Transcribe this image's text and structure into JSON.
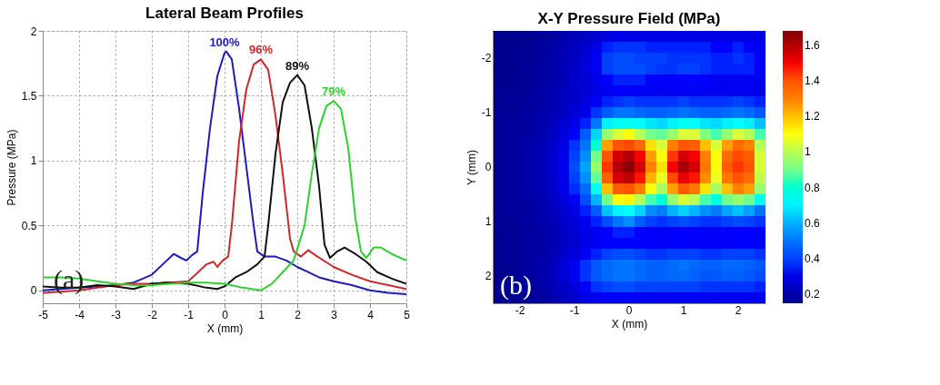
{
  "chart_data": [
    {
      "type": "line",
      "title": "Lateral Beam Profiles",
      "xlabel": "X (mm)",
      "ylabel": "Pressure (MPa)",
      "xlim": [
        -5,
        5
      ],
      "xticks": [
        -5,
        -4,
        -3,
        -2,
        -1,
        0,
        1,
        2,
        3,
        4,
        5
      ],
      "ylim": [
        -0.1,
        2
      ],
      "yticks": [
        0,
        0.5,
        1,
        1.5,
        2
      ],
      "grid": true,
      "line_style": "solid",
      "series": [
        {
          "color": "#1c1cb8",
          "x": [
            -5,
            -4.5,
            -4,
            -3.5,
            -3,
            -2.5,
            -2,
            -1.7,
            -1.4,
            -1.2,
            -1.05,
            -0.9,
            -0.75,
            -0.6,
            -0.4,
            -0.2,
            0,
            0.05,
            0.2,
            0.4,
            0.6,
            0.8,
            0.9,
            1.1,
            1.4,
            1.7,
            2,
            2.3,
            2.6,
            3,
            3.5,
            4,
            4.5,
            5
          ],
          "values": [
            0.0,
            0.01,
            0.02,
            0.03,
            0.04,
            0.06,
            0.12,
            0.2,
            0.28,
            0.25,
            0.23,
            0.27,
            0.3,
            0.75,
            1.25,
            1.65,
            1.83,
            1.84,
            1.78,
            1.4,
            0.95,
            0.5,
            0.3,
            0.26,
            0.26,
            0.23,
            0.18,
            0.14,
            0.1,
            0.07,
            0.04,
            0.0,
            -0.02,
            -0.03
          ]
        },
        {
          "color": "#d02828",
          "x": [
            -5,
            -4.5,
            -4,
            -3.5,
            -3,
            -2.5,
            -2,
            -1.5,
            -1,
            -0.8,
            -0.5,
            -0.3,
            -0.2,
            -0.05,
            0.1,
            0.2,
            0.4,
            0.6,
            0.8,
            1.0,
            1.2,
            1.4,
            1.6,
            1.8,
            1.9,
            2.1,
            2.3,
            2.5,
            3,
            3.5,
            4,
            4.5,
            5
          ],
          "values": [
            -0.02,
            -0.01,
            0.0,
            0.02,
            0.04,
            0.05,
            0.05,
            0.06,
            0.07,
            0.12,
            0.2,
            0.22,
            0.18,
            0.23,
            0.26,
            0.5,
            1.15,
            1.55,
            1.74,
            1.78,
            1.7,
            1.35,
            0.9,
            0.4,
            0.3,
            0.26,
            0.31,
            0.27,
            0.18,
            0.12,
            0.07,
            0.04,
            0.01
          ]
        },
        {
          "color": "#111111",
          "x": [
            -5,
            -4.5,
            -4,
            -3.5,
            -3,
            -2.5,
            -2,
            -1.6,
            -1,
            -0.5,
            -0.2,
            0,
            0.3,
            0.6,
            0.9,
            1.1,
            1.2,
            1.4,
            1.6,
            1.8,
            2.0,
            2.2,
            2.4,
            2.6,
            2.75,
            2.9,
            3.1,
            3.3,
            3.6,
            3.9,
            4.2,
            4.6,
            5
          ],
          "values": [
            0.03,
            0.02,
            0.02,
            0.04,
            0.03,
            0.01,
            0.05,
            0.06,
            0.05,
            0.02,
            0.01,
            0.03,
            0.1,
            0.14,
            0.2,
            0.26,
            0.5,
            1.05,
            1.45,
            1.6,
            1.66,
            1.58,
            1.25,
            0.8,
            0.35,
            0.25,
            0.3,
            0.33,
            0.28,
            0.22,
            0.14,
            0.09,
            0.05
          ]
        },
        {
          "color": "#2ed22e",
          "x": [
            -5,
            -4.5,
            -4,
            -3.5,
            -3,
            -2.5,
            -2,
            -1.5,
            -1,
            -0.5,
            0,
            0.5,
            1.0,
            1.3,
            1.6,
            1.9,
            2.2,
            2.4,
            2.6,
            2.8,
            3.0,
            3.2,
            3.4,
            3.6,
            3.75,
            3.9,
            4.1,
            4.3,
            4.6,
            5
          ],
          "values": [
            0.1,
            0.1,
            0.09,
            0.07,
            0.05,
            0.04,
            0.04,
            0.05,
            0.06,
            0.06,
            0.05,
            0.02,
            0.0,
            0.05,
            0.14,
            0.23,
            0.5,
            0.9,
            1.25,
            1.42,
            1.46,
            1.4,
            1.1,
            0.55,
            0.3,
            0.25,
            0.33,
            0.33,
            0.28,
            0.23
          ]
        }
      ],
      "annotations": [
        {
          "text": "100%",
          "x": 0,
          "y": 1.84
        },
        {
          "text": "96%",
          "x": 1,
          "y": 1.78
        },
        {
          "text": "89%",
          "x": 2,
          "y": 1.66
        },
        {
          "text": "79%",
          "x": 3,
          "y": 1.46
        },
        "(a)"
      ]
    },
    {
      "type": "heatmap",
      "title": "X-Y Pressure Field (MPa)",
      "xlabel": "X (mm)",
      "ylabel": "Y (mm)",
      "clim": [
        0.15,
        1.68
      ],
      "cticks": [
        0.2,
        0.4,
        0.6,
        0.8,
        1,
        1.2,
        1.4,
        1.6
      ],
      "categories": [
        null,
        null,
        "-2",
        null,
        null,
        null,
        null,
        "-1",
        null,
        null,
        null,
        null,
        "0",
        null,
        null,
        null,
        null,
        "1",
        null,
        null,
        null,
        null,
        "2",
        null,
        null
      ],
      "y_categories": [
        null,
        null,
        "-2",
        null,
        null,
        null,
        null,
        "-1",
        null,
        null,
        null,
        null,
        "0",
        null,
        null,
        null,
        null,
        "1",
        null,
        null,
        null,
        null,
        "2",
        null,
        null
      ],
      "cells": [
        [
          0.15,
          0.15,
          0.15,
          0.16,
          0.17,
          0.18,
          0.2,
          0.22,
          0.24,
          0.26,
          0.28,
          0.3,
          0.3,
          0.3,
          0.3,
          0.3,
          0.3,
          0.3,
          0.3,
          0.3,
          0.3,
          0.3,
          0.3,
          0.3,
          0.3
        ],
        [
          0.15,
          0.15,
          0.15,
          0.16,
          0.17,
          0.19,
          0.21,
          0.23,
          0.26,
          0.3,
          0.36,
          0.38,
          0.38,
          0.38,
          0.36,
          0.36,
          0.36,
          0.36,
          0.36,
          0.36,
          0.34,
          0.34,
          0.36,
          0.34,
          0.32
        ],
        [
          0.15,
          0.15,
          0.16,
          0.16,
          0.18,
          0.2,
          0.22,
          0.24,
          0.27,
          0.32,
          0.4,
          0.42,
          0.42,
          0.4,
          0.4,
          0.4,
          0.38,
          0.38,
          0.38,
          0.38,
          0.36,
          0.36,
          0.38,
          0.36,
          0.34
        ],
        [
          0.15,
          0.15,
          0.16,
          0.17,
          0.18,
          0.2,
          0.22,
          0.25,
          0.28,
          0.32,
          0.4,
          0.42,
          0.42,
          0.42,
          0.4,
          0.38,
          0.38,
          0.4,
          0.4,
          0.38,
          0.36,
          0.36,
          0.36,
          0.36,
          0.34
        ],
        [
          0.15,
          0.15,
          0.16,
          0.17,
          0.18,
          0.2,
          0.22,
          0.25,
          0.27,
          0.3,
          0.34,
          0.36,
          0.36,
          0.36,
          0.34,
          0.34,
          0.34,
          0.34,
          0.34,
          0.34,
          0.32,
          0.32,
          0.32,
          0.32,
          0.32
        ],
        [
          0.15,
          0.16,
          0.16,
          0.17,
          0.19,
          0.21,
          0.23,
          0.25,
          0.27,
          0.3,
          0.32,
          0.33,
          0.33,
          0.33,
          0.32,
          0.32,
          0.32,
          0.32,
          0.32,
          0.32,
          0.32,
          0.32,
          0.32,
          0.32,
          0.3
        ],
        [
          0.15,
          0.16,
          0.17,
          0.18,
          0.19,
          0.21,
          0.23,
          0.26,
          0.28,
          0.32,
          0.36,
          0.38,
          0.4,
          0.38,
          0.38,
          0.38,
          0.38,
          0.4,
          0.38,
          0.38,
          0.38,
          0.38,
          0.4,
          0.38,
          0.36
        ],
        [
          0.16,
          0.16,
          0.17,
          0.18,
          0.2,
          0.22,
          0.24,
          0.27,
          0.3,
          0.38,
          0.45,
          0.5,
          0.5,
          0.48,
          0.46,
          0.46,
          0.48,
          0.5,
          0.48,
          0.46,
          0.46,
          0.48,
          0.5,
          0.48,
          0.44
        ],
        [
          0.16,
          0.17,
          0.18,
          0.19,
          0.2,
          0.23,
          0.26,
          0.3,
          0.36,
          0.5,
          0.7,
          0.75,
          0.75,
          0.72,
          0.68,
          0.66,
          0.7,
          0.75,
          0.72,
          0.68,
          0.66,
          0.7,
          0.72,
          0.7,
          0.62
        ],
        [
          0.16,
          0.17,
          0.18,
          0.19,
          0.21,
          0.24,
          0.28,
          0.34,
          0.45,
          0.65,
          0.95,
          1.05,
          1.1,
          1.0,
          0.9,
          0.88,
          0.95,
          1.05,
          1.05,
          0.92,
          0.85,
          0.95,
          1.05,
          1.0,
          0.85
        ],
        [
          0.16,
          0.17,
          0.18,
          0.2,
          0.22,
          0.25,
          0.3,
          0.38,
          0.5,
          0.8,
          1.25,
          1.4,
          1.42,
          1.35,
          1.15,
          1.05,
          1.3,
          1.4,
          1.38,
          1.2,
          1.05,
          1.25,
          1.35,
          1.3,
          1.0
        ],
        [
          0.16,
          0.17,
          0.18,
          0.2,
          0.22,
          0.26,
          0.31,
          0.4,
          0.55,
          0.9,
          1.4,
          1.55,
          1.6,
          1.5,
          1.25,
          1.1,
          1.45,
          1.55,
          1.5,
          1.3,
          1.1,
          1.35,
          1.42,
          1.38,
          1.05
        ],
        [
          0.16,
          0.17,
          0.18,
          0.2,
          0.22,
          0.26,
          0.32,
          0.42,
          0.58,
          0.95,
          1.45,
          1.6,
          1.66,
          1.55,
          1.3,
          1.15,
          1.5,
          1.62,
          1.55,
          1.32,
          1.1,
          1.38,
          1.45,
          1.4,
          1.05
        ],
        [
          0.16,
          0.17,
          0.18,
          0.2,
          0.22,
          0.26,
          0.31,
          0.4,
          0.55,
          0.88,
          1.38,
          1.55,
          1.58,
          1.48,
          1.22,
          1.08,
          1.42,
          1.52,
          1.48,
          1.28,
          1.08,
          1.32,
          1.4,
          1.35,
          1.02
        ],
        [
          0.16,
          0.17,
          0.18,
          0.2,
          0.22,
          0.25,
          0.3,
          0.37,
          0.48,
          0.75,
          1.2,
          1.38,
          1.4,
          1.3,
          1.1,
          0.98,
          1.25,
          1.38,
          1.32,
          1.15,
          0.98,
          1.2,
          1.3,
          1.25,
          0.95
        ],
        [
          0.16,
          0.17,
          0.18,
          0.19,
          0.21,
          0.24,
          0.28,
          0.33,
          0.42,
          0.6,
          0.9,
          1.1,
          1.12,
          1.0,
          0.85,
          0.8,
          0.95,
          1.05,
          1.0,
          0.85,
          0.78,
          0.9,
          0.95,
          0.9,
          0.75
        ],
        [
          0.16,
          0.17,
          0.18,
          0.19,
          0.2,
          0.23,
          0.26,
          0.3,
          0.36,
          0.45,
          0.62,
          0.7,
          0.72,
          0.65,
          0.55,
          0.52,
          0.6,
          0.65,
          0.6,
          0.55,
          0.52,
          0.58,
          0.62,
          0.58,
          0.5
        ],
        [
          0.16,
          0.16,
          0.17,
          0.18,
          0.2,
          0.22,
          0.25,
          0.28,
          0.32,
          0.36,
          0.42,
          0.5,
          0.55,
          0.45,
          0.4,
          0.38,
          0.4,
          0.42,
          0.4,
          0.38,
          0.38,
          0.4,
          0.42,
          0.4,
          0.38
        ],
        [
          0.15,
          0.16,
          0.17,
          0.18,
          0.19,
          0.21,
          0.24,
          0.27,
          0.3,
          0.32,
          0.34,
          0.36,
          0.36,
          0.34,
          0.33,
          0.33,
          0.34,
          0.34,
          0.34,
          0.33,
          0.33,
          0.34,
          0.34,
          0.34,
          0.33
        ],
        [
          0.15,
          0.16,
          0.17,
          0.18,
          0.19,
          0.21,
          0.24,
          0.27,
          0.3,
          0.32,
          0.34,
          0.34,
          0.34,
          0.34,
          0.33,
          0.33,
          0.34,
          0.34,
          0.33,
          0.33,
          0.33,
          0.33,
          0.34,
          0.34,
          0.33
        ],
        [
          0.15,
          0.16,
          0.17,
          0.18,
          0.19,
          0.22,
          0.25,
          0.28,
          0.32,
          0.36,
          0.4,
          0.42,
          0.42,
          0.4,
          0.38,
          0.38,
          0.4,
          0.4,
          0.4,
          0.38,
          0.38,
          0.4,
          0.4,
          0.4,
          0.38
        ],
        [
          0.15,
          0.16,
          0.17,
          0.18,
          0.2,
          0.23,
          0.27,
          0.32,
          0.38,
          0.44,
          0.48,
          0.5,
          0.5,
          0.48,
          0.46,
          0.46,
          0.48,
          0.5,
          0.48,
          0.46,
          0.46,
          0.48,
          0.48,
          0.46,
          0.44
        ],
        [
          0.15,
          0.16,
          0.17,
          0.18,
          0.2,
          0.23,
          0.27,
          0.32,
          0.38,
          0.44,
          0.48,
          0.5,
          0.5,
          0.48,
          0.46,
          0.46,
          0.48,
          0.48,
          0.46,
          0.44,
          0.44,
          0.46,
          0.46,
          0.44,
          0.42
        ],
        [
          0.15,
          0.16,
          0.17,
          0.18,
          0.19,
          0.22,
          0.25,
          0.28,
          0.33,
          0.38,
          0.4,
          0.42,
          0.42,
          0.4,
          0.4,
          0.4,
          0.4,
          0.4,
          0.4,
          0.38,
          0.38,
          0.38,
          0.38,
          0.38,
          0.36
        ],
        [
          0.15,
          0.15,
          0.16,
          0.17,
          0.18,
          0.2,
          0.23,
          0.26,
          0.3,
          0.32,
          0.34,
          0.34,
          0.34,
          0.33,
          0.33,
          0.33,
          0.33,
          0.33,
          0.33,
          0.32,
          0.32,
          0.32,
          0.32,
          0.32,
          0.32
        ]
      ],
      "annotations": [
        "(b)"
      ]
    }
  ]
}
